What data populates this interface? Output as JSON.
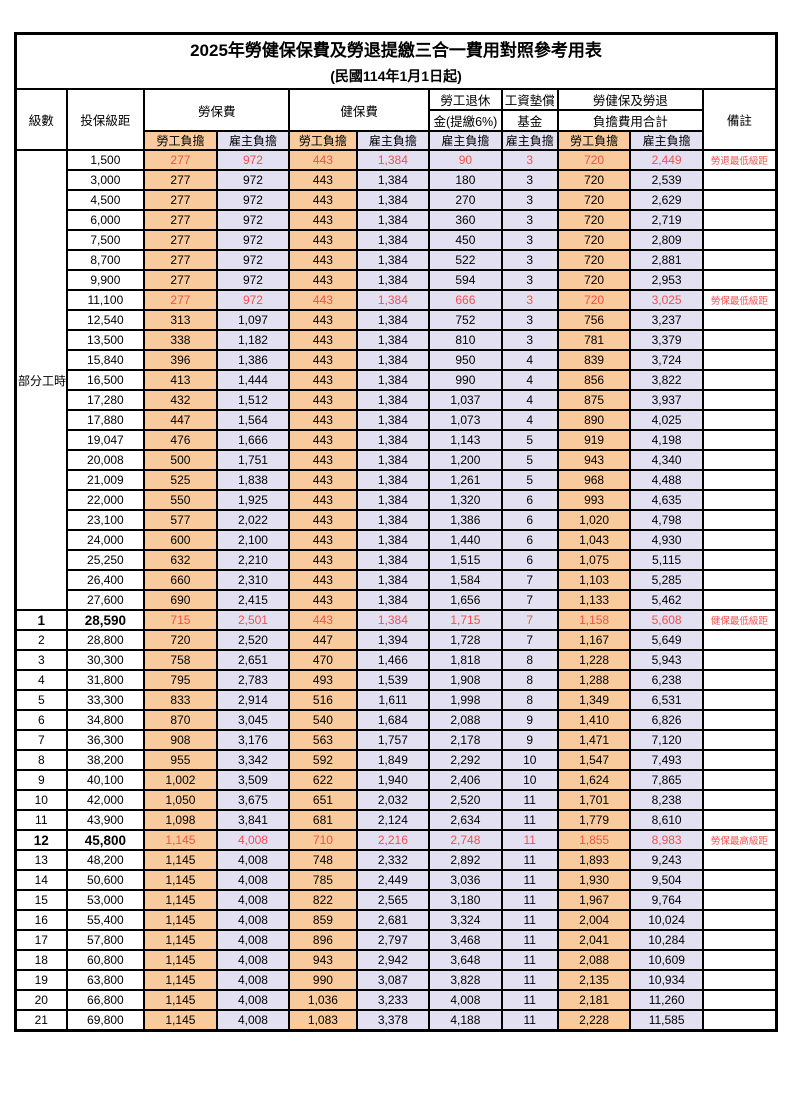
{
  "page": {
    "title": "2025年勞健保保費及勞退提繳三合一費用對照參考用表",
    "subtitle": "(民國114年1月1日起)"
  },
  "colors": {
    "employee_bg": "#F9CB9C",
    "employer_bg": "#E3E0F1",
    "highlight_red": "#F4514E",
    "border": "#000000"
  },
  "table": {
    "headers": {
      "level": "級數",
      "bracket": "投保級距",
      "labor_insurance": "勞保費",
      "health_insurance": "健保費",
      "pension_line1": "勞工退休",
      "pension_line2": "金(提繳6%)",
      "wage_fund_line1": "工資墊償",
      "wage_fund_line2": "基金",
      "total_line1": "勞健保及勞退",
      "total_line2": "負擔費用合計",
      "note": "備註",
      "employee": "勞工負擔",
      "employer": "雇主負擔"
    },
    "part_time_label": "部分工時",
    "part_time_rowspan": 23,
    "value_col_classes": [
      "emp",
      "er",
      "emp",
      "er",
      "er",
      "er",
      "emp",
      "er"
    ],
    "rows": [
      {
        "level": "",
        "bracket": "1,500",
        "values": [
          "277",
          "972",
          "443",
          "1,384",
          "90",
          "3",
          "720",
          "2,449"
        ],
        "note": "勞退最低級距",
        "red": true,
        "bold": false
      },
      {
        "level": "",
        "bracket": "3,000",
        "values": [
          "277",
          "972",
          "443",
          "1,384",
          "180",
          "3",
          "720",
          "2,539"
        ],
        "note": "",
        "red": false,
        "bold": false
      },
      {
        "level": "",
        "bracket": "4,500",
        "values": [
          "277",
          "972",
          "443",
          "1,384",
          "270",
          "3",
          "720",
          "2,629"
        ],
        "note": "",
        "red": false,
        "bold": false
      },
      {
        "level": "",
        "bracket": "6,000",
        "values": [
          "277",
          "972",
          "443",
          "1,384",
          "360",
          "3",
          "720",
          "2,719"
        ],
        "note": "",
        "red": false,
        "bold": false
      },
      {
        "level": "",
        "bracket": "7,500",
        "values": [
          "277",
          "972",
          "443",
          "1,384",
          "450",
          "3",
          "720",
          "2,809"
        ],
        "note": "",
        "red": false,
        "bold": false
      },
      {
        "level": "",
        "bracket": "8,700",
        "values": [
          "277",
          "972",
          "443",
          "1,384",
          "522",
          "3",
          "720",
          "2,881"
        ],
        "note": "",
        "red": false,
        "bold": false
      },
      {
        "level": "",
        "bracket": "9,900",
        "values": [
          "277",
          "972",
          "443",
          "1,384",
          "594",
          "3",
          "720",
          "2,953"
        ],
        "note": "",
        "red": false,
        "bold": false
      },
      {
        "level": "",
        "bracket": "11,100",
        "values": [
          "277",
          "972",
          "443",
          "1,384",
          "666",
          "3",
          "720",
          "3,025"
        ],
        "note": "勞保最低級距",
        "red": true,
        "bold": false
      },
      {
        "level": "",
        "bracket": "12,540",
        "values": [
          "313",
          "1,097",
          "443",
          "1,384",
          "752",
          "3",
          "756",
          "3,237"
        ],
        "note": "",
        "red": false,
        "bold": false
      },
      {
        "level": "",
        "bracket": "13,500",
        "values": [
          "338",
          "1,182",
          "443",
          "1,384",
          "810",
          "3",
          "781",
          "3,379"
        ],
        "note": "",
        "red": false,
        "bold": false
      },
      {
        "level": "",
        "bracket": "15,840",
        "values": [
          "396",
          "1,386",
          "443",
          "1,384",
          "950",
          "4",
          "839",
          "3,724"
        ],
        "note": "",
        "red": false,
        "bold": false
      },
      {
        "level": "",
        "bracket": "16,500",
        "values": [
          "413",
          "1,444",
          "443",
          "1,384",
          "990",
          "4",
          "856",
          "3,822"
        ],
        "note": "",
        "red": false,
        "bold": false
      },
      {
        "level": "",
        "bracket": "17,280",
        "values": [
          "432",
          "1,512",
          "443",
          "1,384",
          "1,037",
          "4",
          "875",
          "3,937"
        ],
        "note": "",
        "red": false,
        "bold": false
      },
      {
        "level": "",
        "bracket": "17,880",
        "values": [
          "447",
          "1,564",
          "443",
          "1,384",
          "1,073",
          "4",
          "890",
          "4,025"
        ],
        "note": "",
        "red": false,
        "bold": false
      },
      {
        "level": "",
        "bracket": "19,047",
        "values": [
          "476",
          "1,666",
          "443",
          "1,384",
          "1,143",
          "5",
          "919",
          "4,198"
        ],
        "note": "",
        "red": false,
        "bold": false
      },
      {
        "level": "",
        "bracket": "20,008",
        "values": [
          "500",
          "1,751",
          "443",
          "1,384",
          "1,200",
          "5",
          "943",
          "4,340"
        ],
        "note": "",
        "red": false,
        "bold": false
      },
      {
        "level": "",
        "bracket": "21,009",
        "values": [
          "525",
          "1,838",
          "443",
          "1,384",
          "1,261",
          "5",
          "968",
          "4,488"
        ],
        "note": "",
        "red": false,
        "bold": false
      },
      {
        "level": "",
        "bracket": "22,000",
        "values": [
          "550",
          "1,925",
          "443",
          "1,384",
          "1,320",
          "6",
          "993",
          "4,635"
        ],
        "note": "",
        "red": false,
        "bold": false
      },
      {
        "level": "",
        "bracket": "23,100",
        "values": [
          "577",
          "2,022",
          "443",
          "1,384",
          "1,386",
          "6",
          "1,020",
          "4,798"
        ],
        "note": "",
        "red": false,
        "bold": false
      },
      {
        "level": "",
        "bracket": "24,000",
        "values": [
          "600",
          "2,100",
          "443",
          "1,384",
          "1,440",
          "6",
          "1,043",
          "4,930"
        ],
        "note": "",
        "red": false,
        "bold": false
      },
      {
        "level": "",
        "bracket": "25,250",
        "values": [
          "632",
          "2,210",
          "443",
          "1,384",
          "1,515",
          "6",
          "1,075",
          "5,115"
        ],
        "note": "",
        "red": false,
        "bold": false
      },
      {
        "level": "",
        "bracket": "26,400",
        "values": [
          "660",
          "2,310",
          "443",
          "1,384",
          "1,584",
          "7",
          "1,103",
          "5,285"
        ],
        "note": "",
        "red": false,
        "bold": false
      },
      {
        "level": "",
        "bracket": "27,600",
        "values": [
          "690",
          "2,415",
          "443",
          "1,384",
          "1,656",
          "7",
          "1,133",
          "5,462"
        ],
        "note": "",
        "red": false,
        "bold": false
      },
      {
        "level": "1",
        "bracket": "28,590",
        "values": [
          "715",
          "2,501",
          "443",
          "1,384",
          "1,715",
          "7",
          "1,158",
          "5,608"
        ],
        "note": "健保最低級距",
        "red": true,
        "bold": true
      },
      {
        "level": "2",
        "bracket": "28,800",
        "values": [
          "720",
          "2,520",
          "447",
          "1,394",
          "1,728",
          "7",
          "1,167",
          "5,649"
        ],
        "note": "",
        "red": false,
        "bold": false
      },
      {
        "level": "3",
        "bracket": "30,300",
        "values": [
          "758",
          "2,651",
          "470",
          "1,466",
          "1,818",
          "8",
          "1,228",
          "5,943"
        ],
        "note": "",
        "red": false,
        "bold": false
      },
      {
        "level": "4",
        "bracket": "31,800",
        "values": [
          "795",
          "2,783",
          "493",
          "1,539",
          "1,908",
          "8",
          "1,288",
          "6,238"
        ],
        "note": "",
        "red": false,
        "bold": false
      },
      {
        "level": "5",
        "bracket": "33,300",
        "values": [
          "833",
          "2,914",
          "516",
          "1,611",
          "1,998",
          "8",
          "1,349",
          "6,531"
        ],
        "note": "",
        "red": false,
        "bold": false
      },
      {
        "level": "6",
        "bracket": "34,800",
        "values": [
          "870",
          "3,045",
          "540",
          "1,684",
          "2,088",
          "9",
          "1,410",
          "6,826"
        ],
        "note": "",
        "red": false,
        "bold": false
      },
      {
        "level": "7",
        "bracket": "36,300",
        "values": [
          "908",
          "3,176",
          "563",
          "1,757",
          "2,178",
          "9",
          "1,471",
          "7,120"
        ],
        "note": "",
        "red": false,
        "bold": false
      },
      {
        "level": "8",
        "bracket": "38,200",
        "values": [
          "955",
          "3,342",
          "592",
          "1,849",
          "2,292",
          "10",
          "1,547",
          "7,493"
        ],
        "note": "",
        "red": false,
        "bold": false
      },
      {
        "level": "9",
        "bracket": "40,100",
        "values": [
          "1,002",
          "3,509",
          "622",
          "1,940",
          "2,406",
          "10",
          "1,624",
          "7,865"
        ],
        "note": "",
        "red": false,
        "bold": false
      },
      {
        "level": "10",
        "bracket": "42,000",
        "values": [
          "1,050",
          "3,675",
          "651",
          "2,032",
          "2,520",
          "11",
          "1,701",
          "8,238"
        ],
        "note": "",
        "red": false,
        "bold": false
      },
      {
        "level": "11",
        "bracket": "43,900",
        "values": [
          "1,098",
          "3,841",
          "681",
          "2,124",
          "2,634",
          "11",
          "1,779",
          "8,610"
        ],
        "note": "",
        "red": false,
        "bold": false
      },
      {
        "level": "12",
        "bracket": "45,800",
        "values": [
          "1,145",
          "4,008",
          "710",
          "2,216",
          "2,748",
          "11",
          "1,855",
          "8,983"
        ],
        "note": "勞保最高級距",
        "red": true,
        "bold": true
      },
      {
        "level": "13",
        "bracket": "48,200",
        "values": [
          "1,145",
          "4,008",
          "748",
          "2,332",
          "2,892",
          "11",
          "1,893",
          "9,243"
        ],
        "note": "",
        "red": false,
        "bold": false
      },
      {
        "level": "14",
        "bracket": "50,600",
        "values": [
          "1,145",
          "4,008",
          "785",
          "2,449",
          "3,036",
          "11",
          "1,930",
          "9,504"
        ],
        "note": "",
        "red": false,
        "bold": false
      },
      {
        "level": "15",
        "bracket": "53,000",
        "values": [
          "1,145",
          "4,008",
          "822",
          "2,565",
          "3,180",
          "11",
          "1,967",
          "9,764"
        ],
        "note": "",
        "red": false,
        "bold": false
      },
      {
        "level": "16",
        "bracket": "55,400",
        "values": [
          "1,145",
          "4,008",
          "859",
          "2,681",
          "3,324",
          "11",
          "2,004",
          "10,024"
        ],
        "note": "",
        "red": false,
        "bold": false
      },
      {
        "level": "17",
        "bracket": "57,800",
        "values": [
          "1,145",
          "4,008",
          "896",
          "2,797",
          "3,468",
          "11",
          "2,041",
          "10,284"
        ],
        "note": "",
        "red": false,
        "bold": false
      },
      {
        "level": "18",
        "bracket": "60,800",
        "values": [
          "1,145",
          "4,008",
          "943",
          "2,942",
          "3,648",
          "11",
          "2,088",
          "10,609"
        ],
        "note": "",
        "red": false,
        "bold": false
      },
      {
        "level": "19",
        "bracket": "63,800",
        "values": [
          "1,145",
          "4,008",
          "990",
          "3,087",
          "3,828",
          "11",
          "2,135",
          "10,934"
        ],
        "note": "",
        "red": false,
        "bold": false
      },
      {
        "level": "20",
        "bracket": "66,800",
        "values": [
          "1,145",
          "4,008",
          "1,036",
          "3,233",
          "4,008",
          "11",
          "2,181",
          "11,260"
        ],
        "note": "",
        "red": false,
        "bold": false
      },
      {
        "level": "21",
        "bracket": "69,800",
        "values": [
          "1,145",
          "4,008",
          "1,083",
          "3,378",
          "4,188",
          "11",
          "2,228",
          "11,585"
        ],
        "note": "",
        "red": false,
        "bold": false
      }
    ]
  }
}
